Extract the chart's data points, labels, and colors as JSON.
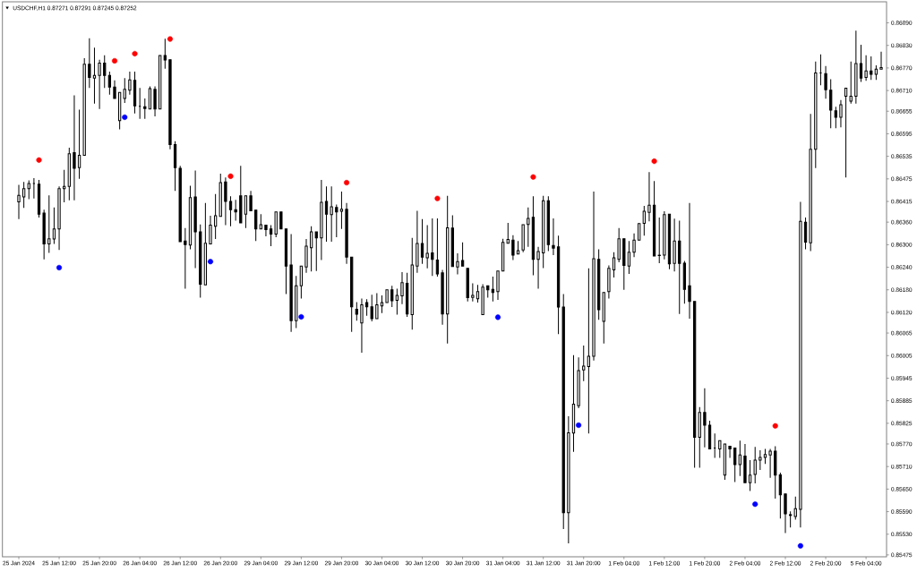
{
  "chart_data": {
    "type": "candlestick",
    "title": "USDCHF,H1 0.87271 0.87291 0.87245 0.87252",
    "color": "#000000",
    "categories": [
      "25 Jan 2024",
      null,
      null,
      null,
      null,
      null,
      null,
      null,
      "25 Jan 12:00",
      null,
      null,
      null,
      null,
      null,
      null,
      null,
      "25 Jan 20:00",
      null,
      null,
      null,
      null,
      null,
      null,
      null,
      "26 Jan 04:00",
      null,
      null,
      null,
      null,
      null,
      null,
      null,
      "26 Jan 12:00",
      null,
      null,
      null,
      null,
      null,
      null,
      null,
      "26 Jan 20:00",
      null,
      null,
      null,
      null,
      null,
      null,
      null,
      "29 Jan 04:00",
      null,
      null,
      null,
      null,
      null,
      null,
      null,
      "29 Jan 12:00",
      null,
      null,
      null,
      null,
      null,
      null,
      null,
      "29 Jan 20:00",
      null,
      null,
      null,
      null,
      null,
      null,
      null,
      "30 Jan 04:00",
      null,
      null,
      null,
      null,
      null,
      null,
      null,
      "30 Jan 12:00",
      null,
      null,
      null,
      null,
      null,
      null,
      null,
      "30 Jan 20:00",
      null,
      null,
      null,
      null,
      null,
      null,
      null,
      "31 Jan 04:00",
      null,
      null,
      null,
      null,
      null,
      null,
      null,
      "31 Jan 12:00",
      null,
      null,
      null,
      null,
      null,
      null,
      null,
      "31 Jan 20:00",
      null,
      null,
      null,
      null,
      null,
      null,
      null,
      "1 Feb 04:00",
      null,
      null,
      null,
      null,
      null,
      null,
      null,
      "1 Feb 12:00",
      null,
      null,
      null,
      null,
      null,
      null,
      null,
      "1 Feb 20:00",
      null,
      null,
      null,
      null,
      null,
      null,
      null,
      "2 Feb 04:00",
      null,
      null,
      null,
      null,
      null,
      null,
      null,
      "2 Feb 12:00",
      null,
      null,
      null,
      null,
      null,
      null,
      null,
      "2 Feb 20:00",
      null,
      null,
      null,
      null,
      null,
      null,
      null,
      "5 Feb 04:00",
      null,
      null,
      null
    ],
    "ohlc": [
      [
        0.86414,
        0.86459,
        0.86368,
        0.86431
      ],
      [
        0.86427,
        0.86467,
        0.86398,
        0.86449
      ],
      [
        0.86449,
        0.86471,
        0.86421,
        0.86463
      ],
      [
        0.86463,
        0.86477,
        0.86423,
        0.86463
      ],
      [
        0.86461,
        0.86472,
        0.86372,
        0.86381
      ],
      [
        0.86384,
        0.86393,
        0.86261,
        0.86302
      ],
      [
        0.86302,
        0.86431,
        0.86278,
        0.86316
      ],
      [
        0.86315,
        0.86399,
        0.86302,
        0.86342
      ],
      [
        0.86342,
        0.86455,
        0.86286,
        0.86449
      ],
      [
        0.86449,
        0.86499,
        0.86413,
        0.86455
      ],
      [
        0.86455,
        0.86558,
        0.86418,
        0.86542
      ],
      [
        0.86545,
        0.86697,
        0.86418,
        0.86503
      ],
      [
        0.86505,
        0.86659,
        0.86475,
        0.86538
      ],
      [
        0.86538,
        0.86796,
        0.86534,
        0.8678
      ],
      [
        0.8678,
        0.86849,
        0.86717,
        0.86745
      ],
      [
        0.86743,
        0.86824,
        0.86675,
        0.8675
      ],
      [
        0.8675,
        0.86792,
        0.86661,
        0.86783
      ],
      [
        0.86783,
        0.86804,
        0.86717,
        0.8675
      ],
      [
        0.8675,
        0.8676,
        0.86699,
        0.86719
      ],
      [
        0.86719,
        0.86737,
        0.86685,
        0.86689
      ],
      [
        0.8663,
        0.86707,
        0.86607,
        0.86705
      ],
      [
        0.86689,
        0.86743,
        0.86677,
        0.86713
      ],
      [
        0.86711,
        0.8676,
        0.86699,
        0.86738
      ],
      [
        0.86737,
        0.8676,
        0.86649,
        0.86669
      ],
      [
        0.86668,
        0.86717,
        0.86635,
        0.86668
      ],
      [
        0.86667,
        0.86689,
        0.86635,
        0.86662
      ],
      [
        0.86661,
        0.86721,
        0.86659,
        0.86715
      ],
      [
        0.86713,
        0.86721,
        0.86641,
        0.86661
      ],
      [
        0.86661,
        0.86804,
        0.86659,
        0.86803
      ],
      [
        0.86803,
        0.86848,
        0.86768,
        0.86791
      ],
      [
        0.86792,
        0.86796,
        0.86554,
        0.86566
      ],
      [
        0.86566,
        0.86575,
        0.86443,
        0.86505
      ],
      [
        0.86503,
        0.8651,
        0.86304,
        0.86308
      ],
      [
        0.8631,
        0.86344,
        0.86183,
        0.863
      ],
      [
        0.86299,
        0.86457,
        0.86288,
        0.86425
      ],
      [
        0.86427,
        0.86497,
        0.86238,
        0.86334
      ],
      [
        0.86334,
        0.86354,
        0.86159,
        0.86195
      ],
      [
        0.86193,
        0.86411,
        0.86193,
        0.86304
      ],
      [
        0.86302,
        0.86377,
        0.86298,
        0.86352
      ],
      [
        0.86349,
        0.86435,
        0.86315,
        0.86377
      ],
      [
        0.86375,
        0.86489,
        0.8637,
        0.86465
      ],
      [
        0.86467,
        0.86479,
        0.86352,
        0.86415
      ],
      [
        0.86415,
        0.86429,
        0.86349,
        0.86393
      ],
      [
        0.86393,
        0.86419,
        0.86364,
        0.86387
      ],
      [
        0.8643,
        0.8651,
        0.86358,
        0.86358
      ],
      [
        0.86381,
        0.86435,
        0.86344,
        0.8643
      ],
      [
        0.8643,
        0.86443,
        0.86387,
        0.8639
      ],
      [
        0.86392,
        0.86392,
        0.8631,
        0.86342
      ],
      [
        0.86342,
        0.86381,
        0.86338,
        0.86353
      ],
      [
        0.86352,
        0.86357,
        0.86322,
        0.8634
      ],
      [
        0.86342,
        0.86352,
        0.86296,
        0.86328
      ],
      [
        0.86328,
        0.86389,
        0.8632,
        0.86387
      ],
      [
        0.86387,
        0.86389,
        0.8634,
        0.86342
      ],
      [
        0.86342,
        0.86344,
        0.86169,
        0.86243
      ],
      [
        0.86246,
        0.86328,
        0.86068,
        0.86098
      ],
      [
        0.86098,
        0.86217,
        0.86078,
        0.86191
      ],
      [
        0.86191,
        0.86245,
        0.86157,
        0.86243
      ],
      [
        0.86241,
        0.86315,
        0.86225,
        0.86296
      ],
      [
        0.86292,
        0.86349,
        0.86229,
        0.86334
      ],
      [
        0.86334,
        0.86336,
        0.8623,
        0.86318
      ],
      [
        0.86318,
        0.86472,
        0.86259,
        0.86413
      ],
      [
        0.86415,
        0.86455,
        0.86308,
        0.86381
      ],
      [
        0.8638,
        0.86455,
        0.86308,
        0.86401
      ],
      [
        0.86399,
        0.86407,
        0.8632,
        0.86387
      ],
      [
        0.86389,
        0.86441,
        0.86342,
        0.86394
      ],
      [
        0.86394,
        0.86411,
        0.86249,
        0.86267
      ],
      [
        0.86267,
        0.86267,
        0.86068,
        0.86135
      ],
      [
        0.86128,
        0.86147,
        0.86098,
        0.86115
      ],
      [
        0.86092,
        0.86157,
        0.86013,
        0.8614
      ],
      [
        0.86146,
        0.86155,
        0.86111,
        0.86135
      ],
      [
        0.86135,
        0.86167,
        0.86096,
        0.86103
      ],
      [
        0.86103,
        0.86171,
        0.86102,
        0.8614
      ],
      [
        0.86137,
        0.86165,
        0.86118,
        0.86146
      ],
      [
        0.86146,
        0.86181,
        0.86143,
        0.8618
      ],
      [
        0.8618,
        0.86191,
        0.86134,
        0.86151
      ],
      [
        0.86152,
        0.86183,
        0.86114,
        0.86165
      ],
      [
        0.86164,
        0.86227,
        0.86142,
        0.86199
      ],
      [
        0.86197,
        0.86225,
        0.86108,
        0.86116
      ],
      [
        0.86114,
        0.86318,
        0.86074,
        0.86246
      ],
      [
        0.86243,
        0.8639,
        0.86225,
        0.86303
      ],
      [
        0.86303,
        0.86368,
        0.86249,
        0.86267
      ],
      [
        0.86265,
        0.86352,
        0.86237,
        0.86277
      ],
      [
        0.86278,
        0.8637,
        0.86217,
        0.86261
      ],
      [
        0.86259,
        0.8637,
        0.86215,
        0.86222
      ],
      [
        0.86225,
        0.86233,
        0.86087,
        0.86116
      ],
      [
        0.86116,
        0.8643,
        0.86037,
        0.86345
      ],
      [
        0.86344,
        0.86378,
        0.86241,
        0.86242
      ],
      [
        0.86241,
        0.86277,
        0.86221,
        0.86255
      ],
      [
        0.86258,
        0.86306,
        0.86238,
        0.86243
      ],
      [
        0.86237,
        0.86238,
        0.86149,
        0.86159
      ],
      [
        0.8616,
        0.86197,
        0.86149,
        0.86165
      ],
      [
        0.86156,
        0.86193,
        0.86146,
        0.86175
      ],
      [
        0.86114,
        0.86195,
        0.86111,
        0.86187
      ],
      [
        0.86191,
        0.86193,
        0.86159,
        0.8618
      ],
      [
        0.86181,
        0.86215,
        0.86149,
        0.86173
      ],
      [
        0.86175,
        0.8623,
        0.86153,
        0.8623
      ],
      [
        0.8623,
        0.86316,
        0.8623,
        0.86306
      ],
      [
        0.86304,
        0.86358,
        0.86299,
        0.86314
      ],
      [
        0.86312,
        0.86325,
        0.86259,
        0.86272
      ],
      [
        0.86275,
        0.8631,
        0.8627,
        0.86284
      ],
      [
        0.86286,
        0.86356,
        0.8628,
        0.86353
      ],
      [
        0.86354,
        0.86399,
        0.86294,
        0.8637
      ],
      [
        0.86373,
        0.86429,
        0.86219,
        0.86261
      ],
      [
        0.86261,
        0.86294,
        0.86183,
        0.86282
      ],
      [
        0.86278,
        0.8643,
        0.86238,
        0.86417
      ],
      [
        0.86417,
        0.86429,
        0.86283,
        0.863
      ],
      [
        0.86298,
        0.8637,
        0.86272,
        0.86291
      ],
      [
        0.86294,
        0.86324,
        0.86062,
        0.86134
      ],
      [
        0.86134,
        0.86169,
        0.85544,
        0.85587
      ],
      [
        0.85587,
        0.85844,
        0.85506,
        0.858
      ],
      [
        0.85799,
        0.86006,
        0.85749,
        0.85876
      ],
      [
        0.85872,
        0.86,
        0.85865,
        0.85965
      ],
      [
        0.85967,
        0.86032,
        0.85937,
        0.85977
      ],
      [
        0.85976,
        0.86237,
        0.85798,
        0.86003
      ],
      [
        0.86003,
        0.86441,
        0.85992,
        0.86263
      ],
      [
        0.86261,
        0.86288,
        0.861,
        0.86127
      ],
      [
        0.86096,
        0.86175,
        0.86037,
        0.86173
      ],
      [
        0.86175,
        0.86245,
        0.86157,
        0.86237
      ],
      [
        0.86233,
        0.8628,
        0.86213,
        0.86265
      ],
      [
        0.86261,
        0.86344,
        0.86253,
        0.86316
      ],
      [
        0.86316,
        0.86318,
        0.8618,
        0.86245
      ],
      [
        0.86243,
        0.8631,
        0.86222,
        0.8628
      ],
      [
        0.8628,
        0.8633,
        0.86267,
        0.86312
      ],
      [
        0.86312,
        0.8636,
        0.86308,
        0.86356
      ],
      [
        0.86357,
        0.86403,
        0.86324,
        0.86389
      ],
      [
        0.86386,
        0.86493,
        0.86362,
        0.86405
      ],
      [
        0.86405,
        0.86469,
        0.86265,
        0.8627
      ],
      [
        0.86272,
        0.86372,
        0.86251,
        0.86271
      ],
      [
        0.86272,
        0.86389,
        0.86261,
        0.8638
      ],
      [
        0.86381,
        0.86381,
        0.86235,
        0.86249
      ],
      [
        0.8625,
        0.86369,
        0.86229,
        0.8631
      ],
      [
        0.8631,
        0.86364,
        0.86116,
        0.8625
      ],
      [
        0.86251,
        0.86257,
        0.86143,
        0.86181
      ],
      [
        0.86191,
        0.86411,
        0.86103,
        0.86149
      ],
      [
        0.86149,
        0.86149,
        0.85707,
        0.85788
      ],
      [
        0.85788,
        0.85868,
        0.85707,
        0.85854
      ],
      [
        0.85854,
        0.85918,
        0.85761,
        0.8582
      ],
      [
        0.8582,
        0.85832,
        0.85757,
        0.85757
      ],
      [
        0.85759,
        0.85798,
        0.85733,
        0.85759
      ],
      [
        0.85757,
        0.85784,
        0.85733,
        0.85779
      ],
      [
        0.85687,
        0.85772,
        0.85675,
        0.8577
      ],
      [
        0.85764,
        0.85767,
        0.85733,
        0.85757
      ],
      [
        0.85759,
        0.85764,
        0.85669,
        0.85715
      ],
      [
        0.85715,
        0.85779,
        0.85685,
        0.85741
      ],
      [
        0.85738,
        0.8577,
        0.85665,
        0.85667
      ],
      [
        0.85667,
        0.85727,
        0.85645,
        0.85687
      ],
      [
        0.85689,
        0.85762,
        0.85665,
        0.85727
      ],
      [
        0.85727,
        0.85753,
        0.85701,
        0.85734
      ],
      [
        0.85734,
        0.85757,
        0.85717,
        0.85742
      ],
      [
        0.85741,
        0.85757,
        0.8568,
        0.85751
      ],
      [
        0.85751,
        0.85764,
        0.85625,
        0.85687
      ],
      [
        0.85688,
        0.85694,
        0.85572,
        0.85635
      ],
      [
        0.85637,
        0.8564,
        0.85533,
        0.85584
      ],
      [
        0.85582,
        0.85591,
        0.85548,
        0.8558
      ],
      [
        0.85577,
        0.8563,
        0.85569,
        0.85598
      ],
      [
        0.85596,
        0.86414,
        0.85548,
        0.86362
      ],
      [
        0.8636,
        0.86372,
        0.86288,
        0.86307
      ],
      [
        0.86305,
        0.86648,
        0.86283,
        0.86554
      ],
      [
        0.86554,
        0.86787,
        0.86504,
        0.86757
      ],
      [
        0.86757,
        0.86806,
        0.86724,
        0.86757
      ],
      [
        0.86755,
        0.86775,
        0.86688,
        0.86712
      ],
      [
        0.86711,
        0.8674,
        0.8661,
        0.86658
      ],
      [
        0.86656,
        0.86667,
        0.8661,
        0.86639
      ],
      [
        0.86639,
        0.86685,
        0.86612,
        0.86672
      ],
      [
        0.86695,
        0.86719,
        0.86479,
        0.86716
      ],
      [
        0.86682,
        0.86787,
        0.86675,
        0.86695
      ],
      [
        0.86695,
        0.86869,
        0.86675,
        0.86782
      ],
      [
        0.86782,
        0.86832,
        0.86733,
        0.86743
      ],
      [
        0.86745,
        0.86804,
        0.86736,
        0.86762
      ],
      [
        0.86762,
        0.86801,
        0.86738,
        0.86753
      ],
      [
        0.86753,
        0.86777,
        0.86738,
        0.86767
      ],
      [
        0.86767,
        0.86813,
        0.86762,
        0.86771
      ]
    ],
    "series": [
      {
        "type": "scatter",
        "color": "#ff0000",
        "marker": "circle",
        "values": [
          null,
          null,
          null,
          null,
          0.86525,
          null,
          null,
          null,
          null,
          null,
          null,
          null,
          null,
          null,
          null,
          null,
          null,
          null,
          null,
          0.86789,
          null,
          null,
          null,
          0.86808,
          null,
          null,
          null,
          null,
          null,
          null,
          0.86847,
          null,
          null,
          null,
          null,
          null,
          null,
          null,
          null,
          null,
          null,
          null,
          0.86482,
          null,
          null,
          null,
          null,
          null,
          null,
          null,
          null,
          null,
          null,
          null,
          null,
          null,
          null,
          null,
          null,
          null,
          null,
          null,
          null,
          null,
          null,
          0.86465,
          null,
          null,
          null,
          null,
          null,
          null,
          null,
          null,
          null,
          null,
          null,
          null,
          null,
          null,
          null,
          null,
          null,
          0.86423,
          null,
          null,
          null,
          null,
          null,
          null,
          null,
          null,
          null,
          null,
          null,
          null,
          null,
          null,
          null,
          null,
          null,
          null,
          0.8648,
          null,
          null,
          null,
          null,
          null,
          null,
          null,
          null,
          null,
          null,
          null,
          null,
          null,
          null,
          null,
          null,
          null,
          null,
          null,
          null,
          null,
          null,
          null,
          0.86522,
          null,
          null,
          null,
          null,
          null,
          null,
          null,
          null,
          null,
          null,
          null,
          null,
          null,
          null,
          null,
          null,
          null,
          null,
          null,
          null,
          null,
          null,
          null,
          0.85818,
          null,
          null,
          null,
          null,
          null,
          null,
          null,
          null,
          null,
          null,
          null,
          null,
          null,
          null,
          null,
          null,
          null,
          null,
          null,
          null,
          null
        ]
      },
      {
        "type": "scatter",
        "color": "#0000ff",
        "marker": "circle",
        "values": [
          null,
          null,
          null,
          null,
          null,
          null,
          null,
          null,
          0.86239,
          null,
          null,
          null,
          null,
          null,
          null,
          null,
          null,
          null,
          null,
          null,
          null,
          0.86639,
          null,
          null,
          null,
          null,
          null,
          null,
          null,
          null,
          null,
          null,
          null,
          null,
          null,
          null,
          null,
          null,
          0.86255,
          null,
          null,
          null,
          null,
          null,
          null,
          null,
          null,
          null,
          null,
          null,
          null,
          null,
          null,
          null,
          null,
          null,
          0.86108,
          null,
          null,
          null,
          null,
          null,
          null,
          null,
          null,
          null,
          null,
          null,
          null,
          null,
          null,
          null,
          null,
          null,
          null,
          null,
          null,
          null,
          null,
          null,
          null,
          null,
          null,
          null,
          null,
          null,
          null,
          null,
          null,
          null,
          null,
          null,
          null,
          null,
          null,
          0.86107,
          null,
          null,
          null,
          null,
          null,
          null,
          null,
          null,
          null,
          null,
          null,
          null,
          null,
          null,
          null,
          0.8582,
          null,
          null,
          null,
          null,
          null,
          null,
          null,
          null,
          null,
          null,
          null,
          null,
          null,
          null,
          null,
          null,
          null,
          null,
          null,
          null,
          null,
          null,
          null,
          null,
          null,
          null,
          null,
          null,
          null,
          null,
          null,
          null,
          null,
          null,
          0.8561,
          null,
          null,
          null,
          null,
          null,
          null,
          null,
          null,
          0.85499,
          null,
          null,
          null,
          null,
          null,
          null,
          null,
          null,
          null,
          null,
          null,
          null,
          null,
          null,
          null,
          null
        ]
      }
    ],
    "ylim": [
      0.8547,
      0.86946
    ],
    "yticks": [
      {
        "value": 0.8689,
        "label": "0.86890"
      },
      {
        "value": 0.8683,
        "label": "0.86830"
      },
      {
        "value": 0.8677,
        "label": "0.86770"
      },
      {
        "value": 0.8671,
        "label": "0.86710"
      },
      0.86655,
      0.86595,
      0.86535,
      0.86475,
      0.86415,
      {
        "value": 0.8636,
        "label": "0.86360"
      },
      {
        "value": 0.863,
        "label": "0.86300"
      },
      {
        "value": 0.8624,
        "label": "0.86240"
      },
      {
        "value": 0.8618,
        "label": "0.86180"
      },
      {
        "value": 0.8612,
        "label": "0.86120"
      },
      0.86065,
      0.86005,
      0.85945,
      0.85885,
      0.85825,
      {
        "value": 0.8577,
        "label": "0.85770"
      },
      {
        "value": 0.8571,
        "label": "0.85710"
      },
      {
        "value": 0.8565,
        "label": "0.85650"
      },
      {
        "value": 0.8559,
        "label": "0.85590"
      },
      {
        "value": 0.8553,
        "label": "0.85530"
      },
      0.85475
    ]
  }
}
